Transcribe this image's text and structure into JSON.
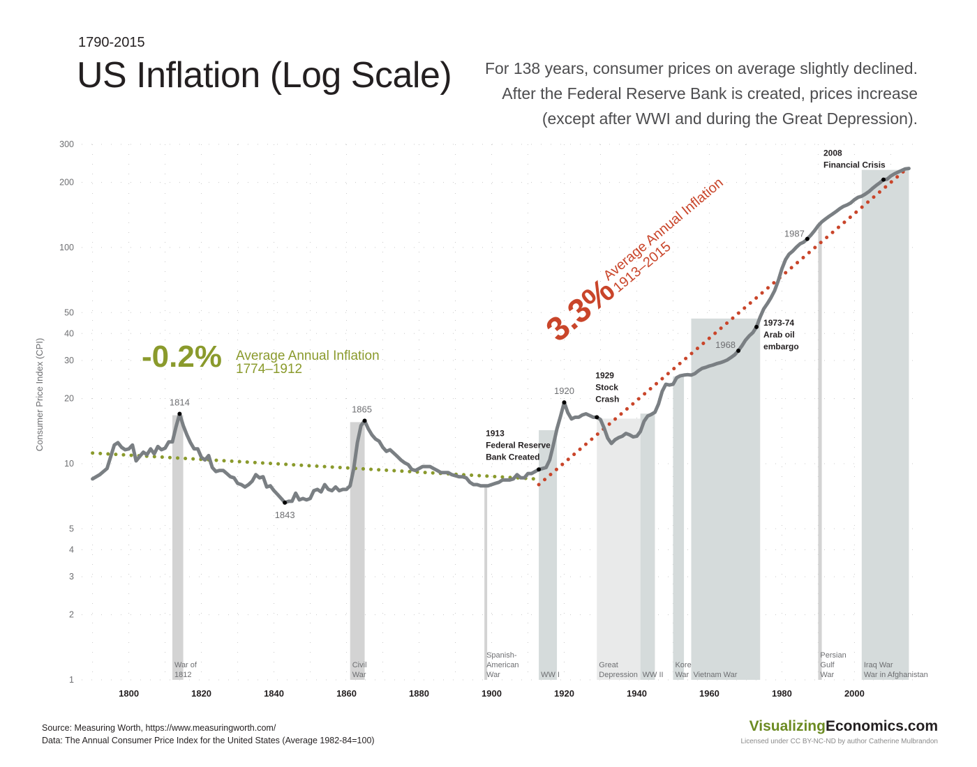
{
  "header": {
    "range": "1790-2015",
    "title": "US Inflation (Log Scale)",
    "intro": [
      "For 138 years, consumer prices on average slightly declined.",
      "After the Federal Reserve Bank is created, prices increase",
      "(except after WWI and during the Great Depression)."
    ]
  },
  "footer": {
    "source": "Source: Measuring Worth, https://www.measuringworth.com/",
    "data_note": "Data: The Annual Consumer Price Index for the United States (Average 1982-84=100)",
    "brand_part1": "Visualizing",
    "brand_part2": "Economics.com",
    "license": "Licensed under CC BY-NC-ND by author Catherine Mulbrandon"
  },
  "colors": {
    "cpi_line": "#7a7f83",
    "early_trend": "#8a9a2c",
    "late_trend": "#c9452a",
    "war_band": "#d3d3d3",
    "peace_band_postfed": "#d5dbdb",
    "depression_band": "#e9eaea",
    "grid_dot": "#c8c8c8"
  },
  "chart_data": {
    "type": "line",
    "ylabel": "Consumer Price Index (CPI)",
    "xlabel": "",
    "yscale": "log",
    "xlim": [
      1787,
      2018
    ],
    "ylim": [
      1,
      300
    ],
    "x_ticks": [
      1800,
      1820,
      1840,
      1860,
      1880,
      1900,
      1920,
      1940,
      1960,
      1980,
      2000
    ],
    "y_ticks": [
      1,
      2,
      3,
      4,
      5,
      10,
      20,
      30,
      40,
      50,
      100,
      200,
      300
    ],
    "series": [
      {
        "points": [
          [
            1790,
            8.5
          ],
          [
            1792,
            8.9
          ],
          [
            1794,
            9.5
          ],
          [
            1796,
            12.2
          ],
          [
            1797,
            12.5
          ],
          [
            1798,
            11.9
          ],
          [
            1799,
            11.6
          ],
          [
            1800,
            11.7
          ],
          [
            1801,
            12.2
          ],
          [
            1802,
            10.3
          ],
          [
            1803,
            10.8
          ],
          [
            1804,
            11.3
          ],
          [
            1805,
            11.0
          ],
          [
            1806,
            11.7
          ],
          [
            1807,
            11.1
          ],
          [
            1808,
            12.0
          ],
          [
            1809,
            11.6
          ],
          [
            1810,
            11.8
          ],
          [
            1811,
            12.6
          ],
          [
            1812,
            12.6
          ],
          [
            1813,
            14.8
          ],
          [
            1814,
            17.0
          ],
          [
            1815,
            15.0
          ],
          [
            1816,
            13.6
          ],
          [
            1817,
            12.5
          ],
          [
            1818,
            11.7
          ],
          [
            1819,
            11.7
          ],
          [
            1820,
            10.7
          ],
          [
            1821,
            10.4
          ],
          [
            1822,
            10.9
          ],
          [
            1823,
            9.6
          ],
          [
            1824,
            9.2
          ],
          [
            1825,
            9.3
          ],
          [
            1826,
            9.3
          ],
          [
            1827,
            9.0
          ],
          [
            1828,
            8.7
          ],
          [
            1829,
            8.6
          ],
          [
            1830,
            8.1
          ],
          [
            1831,
            8.0
          ],
          [
            1832,
            7.8
          ],
          [
            1833,
            8.0
          ],
          [
            1834,
            8.3
          ],
          [
            1835,
            8.9
          ],
          [
            1836,
            8.6
          ],
          [
            1837,
            8.7
          ],
          [
            1838,
            7.8
          ],
          [
            1839,
            7.9
          ],
          [
            1840,
            7.5
          ],
          [
            1841,
            7.2
          ],
          [
            1842,
            6.9
          ],
          [
            1843,
            6.6
          ],
          [
            1844,
            6.7
          ],
          [
            1845,
            6.7
          ],
          [
            1846,
            7.3
          ],
          [
            1847,
            6.8
          ],
          [
            1848,
            6.9
          ],
          [
            1849,
            6.8
          ],
          [
            1850,
            6.9
          ],
          [
            1851,
            7.5
          ],
          [
            1852,
            7.6
          ],
          [
            1853,
            7.4
          ],
          [
            1854,
            8.0
          ],
          [
            1855,
            7.6
          ],
          [
            1856,
            7.5
          ],
          [
            1857,
            7.8
          ],
          [
            1858,
            7.5
          ],
          [
            1859,
            7.6
          ],
          [
            1860,
            7.6
          ],
          [
            1861,
            7.9
          ],
          [
            1862,
            9.5
          ],
          [
            1863,
            12.5
          ],
          [
            1864,
            15.0
          ],
          [
            1865,
            15.8
          ],
          [
            1866,
            14.5
          ],
          [
            1867,
            13.6
          ],
          [
            1868,
            13.0
          ],
          [
            1869,
            12.7
          ],
          [
            1870,
            11.9
          ],
          [
            1871,
            11.4
          ],
          [
            1872,
            11.6
          ],
          [
            1873,
            11.2
          ],
          [
            1874,
            10.8
          ],
          [
            1875,
            10.4
          ],
          [
            1876,
            10.1
          ],
          [
            1877,
            9.9
          ],
          [
            1878,
            9.4
          ],
          [
            1879,
            9.3
          ],
          [
            1880,
            9.5
          ],
          [
            1881,
            9.7
          ],
          [
            1882,
            9.7
          ],
          [
            1883,
            9.7
          ],
          [
            1884,
            9.5
          ],
          [
            1885,
            9.3
          ],
          [
            1886,
            9.1
          ],
          [
            1887,
            9.1
          ],
          [
            1888,
            9.1
          ],
          [
            1889,
            8.9
          ],
          [
            1890,
            8.8
          ],
          [
            1891,
            8.7
          ],
          [
            1892,
            8.7
          ],
          [
            1893,
            8.6
          ],
          [
            1894,
            8.2
          ],
          [
            1895,
            8.0
          ],
          [
            1896,
            8.0
          ],
          [
            1897,
            7.9
          ],
          [
            1898,
            7.9
          ],
          [
            1899,
            7.9
          ],
          [
            1900,
            8.0
          ],
          [
            1901,
            8.1
          ],
          [
            1902,
            8.2
          ],
          [
            1903,
            8.4
          ],
          [
            1904,
            8.4
          ],
          [
            1905,
            8.4
          ],
          [
            1906,
            8.5
          ],
          [
            1907,
            8.9
          ],
          [
            1908,
            8.6
          ],
          [
            1909,
            8.6
          ],
          [
            1910,
            9.0
          ],
          [
            1911,
            9.0
          ],
          [
            1912,
            9.2
          ],
          [
            1913,
            9.4
          ],
          [
            1914,
            9.5
          ],
          [
            1915,
            9.6
          ],
          [
            1916,
            10.4
          ],
          [
            1917,
            12.2
          ],
          [
            1918,
            14.5
          ],
          [
            1919,
            16.6
          ],
          [
            1920,
            19.2
          ],
          [
            1921,
            17.2
          ],
          [
            1922,
            16.1
          ],
          [
            1923,
            16.4
          ],
          [
            1924,
            16.4
          ],
          [
            1925,
            16.8
          ],
          [
            1926,
            17.0
          ],
          [
            1927,
            16.7
          ],
          [
            1928,
            16.4
          ],
          [
            1929,
            16.4
          ],
          [
            1930,
            16.0
          ],
          [
            1931,
            14.6
          ],
          [
            1932,
            13.1
          ],
          [
            1933,
            12.4
          ],
          [
            1934,
            12.9
          ],
          [
            1935,
            13.2
          ],
          [
            1936,
            13.4
          ],
          [
            1937,
            13.8
          ],
          [
            1938,
            13.6
          ],
          [
            1939,
            13.3
          ],
          [
            1940,
            13.4
          ],
          [
            1941,
            14.1
          ],
          [
            1942,
            15.7
          ],
          [
            1943,
            16.6
          ],
          [
            1944,
            16.9
          ],
          [
            1945,
            17.3
          ],
          [
            1946,
            18.9
          ],
          [
            1947,
            21.6
          ],
          [
            1948,
            23.3
          ],
          [
            1949,
            23.1
          ],
          [
            1950,
            23.3
          ],
          [
            1951,
            25.0
          ],
          [
            1952,
            25.5
          ],
          [
            1953,
            25.7
          ],
          [
            1954,
            25.8
          ],
          [
            1955,
            25.7
          ],
          [
            1956,
            26.1
          ],
          [
            1957,
            26.9
          ],
          [
            1958,
            27.6
          ],
          [
            1959,
            27.9
          ],
          [
            1960,
            28.3
          ],
          [
            1961,
            28.6
          ],
          [
            1962,
            29.0
          ],
          [
            1963,
            29.3
          ],
          [
            1964,
            29.7
          ],
          [
            1965,
            30.2
          ],
          [
            1966,
            31.0
          ],
          [
            1967,
            31.9
          ],
          [
            1968,
            33.3
          ],
          [
            1969,
            35.1
          ],
          [
            1970,
            37.3
          ],
          [
            1971,
            39.0
          ],
          [
            1972,
            40.4
          ],
          [
            1973,
            42.9
          ],
          [
            1974,
            47.6
          ],
          [
            1975,
            52.0
          ],
          [
            1976,
            55.0
          ],
          [
            1977,
            58.6
          ],
          [
            1978,
            63.1
          ],
          [
            1979,
            70.2
          ],
          [
            1980,
            79.6
          ],
          [
            1981,
            87.8
          ],
          [
            1982,
            93.2
          ],
          [
            1983,
            96.2
          ],
          [
            1984,
            100.3
          ],
          [
            1985,
            103.9
          ],
          [
            1986,
            105.8
          ],
          [
            1987,
            109.6
          ],
          [
            1988,
            114.1
          ],
          [
            1989,
            119.6
          ],
          [
            1990,
            126.1
          ],
          [
            1991,
            131.4
          ],
          [
            1992,
            135.4
          ],
          [
            1993,
            139.3
          ],
          [
            1994,
            143.0
          ],
          [
            1995,
            147.0
          ],
          [
            1996,
            151.4
          ],
          [
            1997,
            155.0
          ],
          [
            1998,
            157.4
          ],
          [
            1999,
            160.9
          ],
          [
            2000,
            166.3
          ],
          [
            2001,
            170.6
          ],
          [
            2002,
            172.6
          ],
          [
            2003,
            176.6
          ],
          [
            2004,
            181.5
          ],
          [
            2005,
            187.7
          ],
          [
            2006,
            193.7
          ],
          [
            2007,
            199.2
          ],
          [
            2008,
            206.0
          ],
          [
            2009,
            207.0
          ],
          [
            2010,
            214.0
          ],
          [
            2011,
            219.0
          ],
          [
            2012,
            223.0
          ],
          [
            2013,
            227.0
          ],
          [
            2014,
            231.0
          ],
          [
            2015,
            232.0
          ]
        ]
      }
    ],
    "trend_lines": [
      {
        "label_value": "-0.2%",
        "label_text": "Average Annual Inflation",
        "label_years": "1774–1912",
        "from": [
          1790,
          11.2
        ],
        "to": [
          1912,
          8.5
        ]
      },
      {
        "label_value": "3.3%",
        "label_text": "Average Annual Inflation",
        "label_years": "1913–2015",
        "from": [
          1913,
          8.0
        ],
        "to": [
          2015,
          236.0
        ]
      }
    ],
    "event_markers": [
      {
        "year": 1814,
        "value": 17.0,
        "label": "1814",
        "bold": false
      },
      {
        "year": 1843,
        "value": 6.6,
        "label": "1843",
        "bold": false
      },
      {
        "year": 1865,
        "value": 15.8,
        "label": "1865",
        "bold": false
      },
      {
        "year": 1913,
        "value": 9.4,
        "label_lines": [
          "1913",
          "Federal Reserve",
          "Bank Created"
        ],
        "bold": true
      },
      {
        "year": 1920,
        "value": 19.2,
        "label": "1920",
        "bold": false
      },
      {
        "year": 1929,
        "value": 16.4,
        "label_lines": [
          "1929",
          "Stock",
          "Crash"
        ],
        "bold": true
      },
      {
        "year": 1968,
        "value": 33.3,
        "label": "1968",
        "bold": false
      },
      {
        "year": 1973,
        "value": 42.9,
        "label_lines": [
          "1973-74",
          "Arab oil",
          "embargo"
        ],
        "bold": true
      },
      {
        "year": 1987,
        "value": 109.6,
        "label": "1987",
        "bold": false
      },
      {
        "year": 2008,
        "value": 206.0,
        "label_lines": [
          "2008",
          "Financial Crisis"
        ],
        "bold": true
      }
    ],
    "periods": [
      {
        "start": 1812,
        "end": 1815,
        "kind": "war",
        "label_lines": [
          "War of",
          "1812"
        ]
      },
      {
        "start": 1861,
        "end": 1865,
        "kind": "war",
        "label_lines": [
          "Civil",
          "War"
        ]
      },
      {
        "start": 1898,
        "end": 1898.6,
        "kind": "war",
        "label_lines": [
          "Spanish-",
          "American",
          "War"
        ]
      },
      {
        "start": 1913,
        "end": 1918,
        "kind": "fed",
        "label_lines": [
          "WW I"
        ]
      },
      {
        "start": 1929,
        "end": 1941,
        "kind": "depression",
        "label_lines": [
          "Great",
          "Depression"
        ]
      },
      {
        "start": 1941,
        "end": 1945,
        "kind": "fed",
        "label_lines": [
          "WW II"
        ]
      },
      {
        "start": 1950,
        "end": 1953,
        "kind": "fed",
        "label_lines": [
          "Korean",
          "War"
        ]
      },
      {
        "start": 1955,
        "end": 1974,
        "kind": "fed",
        "label_lines": [
          "Vietnam War"
        ]
      },
      {
        "start": 1990,
        "end": 1991,
        "kind": "war",
        "label_lines": [
          "Persian",
          "Gulf",
          "War"
        ]
      },
      {
        "start": 2002,
        "end": 2015,
        "kind": "fed",
        "label_lines": [
          "Iraq War",
          "War in Afghanistan"
        ]
      }
    ]
  }
}
